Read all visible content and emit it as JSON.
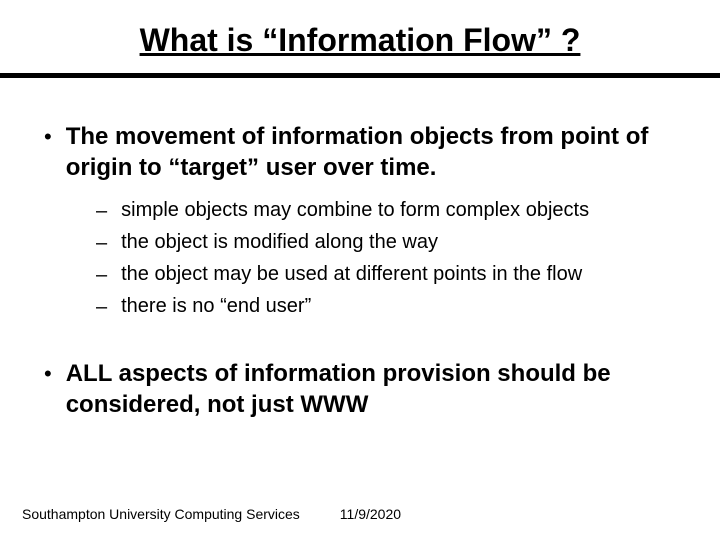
{
  "colors": {
    "background": "#ffffff",
    "text": "#000000",
    "divider": "#000000"
  },
  "typography": {
    "title_fontsize": 32,
    "title_weight": "bold",
    "bullet1_fontsize": 24,
    "bullet1_weight": "bold",
    "bullet2_fontsize": 20,
    "footer_fontsize": 14,
    "font_family": "Arial"
  },
  "title": "What is “Information Flow” ?",
  "bullets": [
    {
      "text": "The movement of information objects from point of origin to “target” user over time.",
      "sub": [
        "simple objects may combine to form complex objects",
        "the object is modified along the way",
        "the object may be used at different points in the flow",
        "there is no “end user”"
      ]
    },
    {
      "text": "ALL aspects of information provision should be considered, not just WWW",
      "sub": []
    }
  ],
  "footer": {
    "org": "Southampton University Computing Services",
    "date": "11/9/2020"
  }
}
